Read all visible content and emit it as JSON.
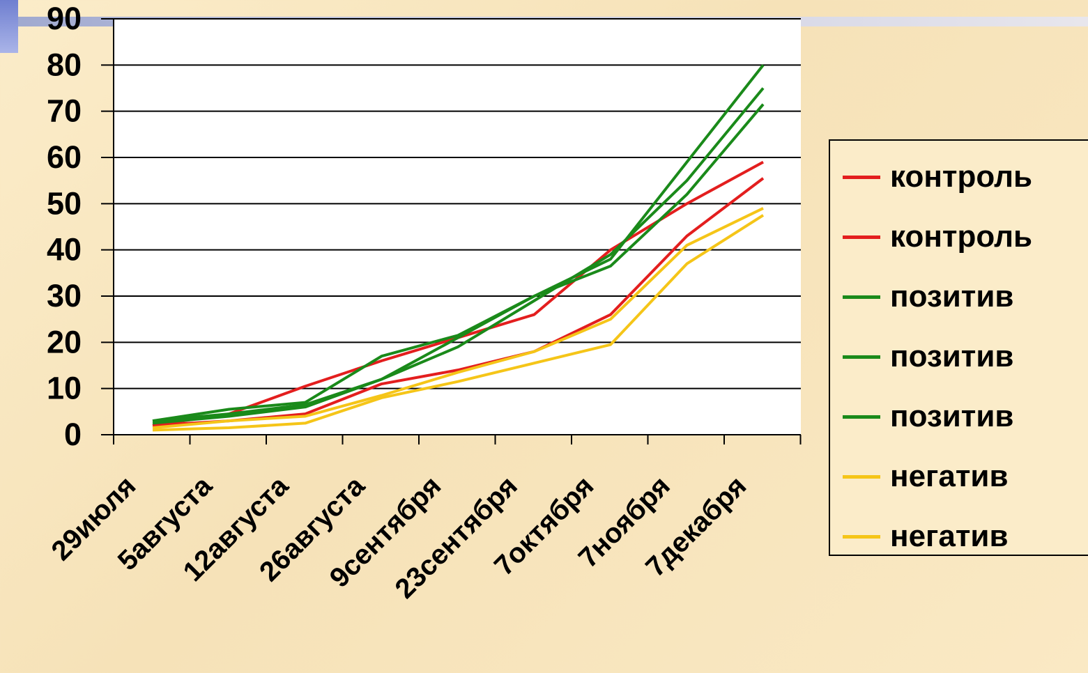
{
  "chart_data": {
    "type": "line",
    "categories": [
      "29июля",
      "5августа",
      "12августа",
      "26августа",
      "9сентября",
      "23сентября",
      "7октября",
      "7ноября",
      "7декабря"
    ],
    "yticks": [
      "0",
      "10",
      "20",
      "30",
      "40",
      "50",
      "60",
      "70",
      "80",
      "90"
    ],
    "ylim": [
      0,
      90
    ],
    "grid": true,
    "legend_position": "right",
    "series": [
      {
        "name": "контроль",
        "color": "#e31e1e",
        "x": [
          0,
          1,
          2,
          3,
          4,
          5,
          6,
          7,
          8
        ],
        "values": [
          2,
          4.5,
          10.5,
          16,
          21,
          26,
          40,
          50,
          59
        ]
      },
      {
        "name": "контроль",
        "color": "#e31e1e",
        "x": [
          0,
          1,
          2,
          3,
          4,
          5,
          6,
          7,
          8
        ],
        "values": [
          2,
          3,
          4.5,
          11,
          14,
          18,
          26,
          43,
          55.5
        ]
      },
      {
        "name": "позитив",
        "color": "#1a8a1a",
        "x": [
          0,
          1,
          2,
          3,
          4,
          5,
          6,
          7,
          8
        ],
        "values": [
          3,
          5.5,
          7,
          17,
          21.5,
          30,
          38,
          59,
          80
        ]
      },
      {
        "name": "позитив",
        "color": "#1a8a1a",
        "x": [
          0,
          1,
          2,
          3,
          4,
          5,
          6,
          7,
          8
        ],
        "values": [
          3,
          4.5,
          6.5,
          12,
          19,
          29,
          39,
          55,
          75
        ]
      },
      {
        "name": "позитив",
        "color": "#1a8a1a",
        "x": [
          0,
          1,
          2,
          3,
          4,
          5,
          6,
          7,
          8
        ],
        "values": [
          2.5,
          4,
          6,
          12,
          21,
          30,
          36.5,
          52,
          71.5
        ]
      },
      {
        "name": "негатив",
        "color": "#f5c518",
        "x": [
          0,
          1,
          2,
          3,
          4,
          5,
          6,
          7,
          8
        ],
        "values": [
          1.5,
          3,
          4,
          8.5,
          13.5,
          18,
          25,
          41,
          49
        ]
      },
      {
        "name": "негатив",
        "color": "#f5c518",
        "x": [
          0,
          1,
          2,
          3,
          4,
          5,
          6,
          7,
          8
        ],
        "values": [
          1,
          1.5,
          2.5,
          8,
          11.5,
          15.5,
          19.5,
          37,
          47.5
        ]
      }
    ]
  }
}
